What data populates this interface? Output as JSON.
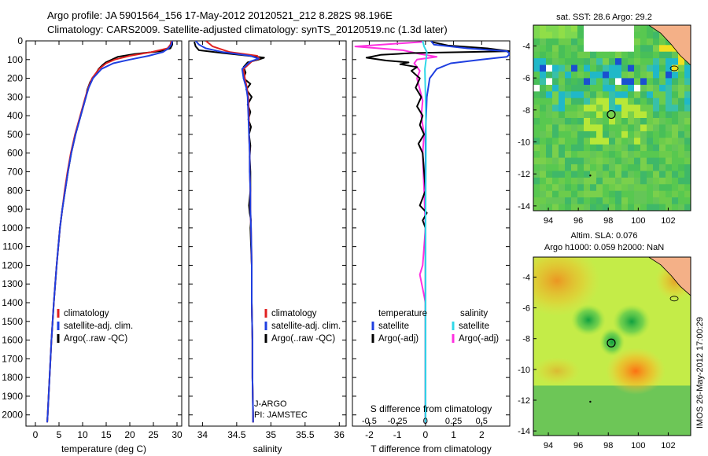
{
  "header": {
    "line1": "Argo profile: JA 5901564_156 17-May-2012 20120521_212 8.282S 98.196E",
    "line2": "Climatology: CARS2009. Satellite-adjusted climatology: synTS_20120519.nc (1.3d later)"
  },
  "colors": {
    "climatology": "#e02020",
    "satellite": "#1f3fe0",
    "argo": "#000000",
    "cyan": "#30d8e8",
    "magenta": "#ff30e0"
  },
  "chart_data": [
    {
      "id": "temperature",
      "type": "line",
      "xlabel": "temperature (deg C)",
      "ylabel": "",
      "xlim": [
        -2,
        31
      ],
      "ylim": [
        2060,
        0
      ],
      "xticks": [
        0,
        5,
        10,
        15,
        20,
        25,
        30
      ],
      "yticks": [
        0,
        100,
        200,
        300,
        400,
        500,
        600,
        700,
        800,
        900,
        1000,
        1100,
        1200,
        1300,
        1400,
        1500,
        1600,
        1700,
        1800,
        1900,
        2000
      ],
      "legend": {
        "position": "bottom-center",
        "entries": [
          "climatology",
          "satellite-adj. clim.",
          "Argo(..raw -QC)"
        ]
      },
      "series": [
        {
          "name": "climatology",
          "color": "#e02020",
          "depth": [
            0,
            20,
            40,
            60,
            80,
            100,
            120,
            150,
            200,
            250,
            300,
            400,
            500,
            600,
            700,
            800,
            900,
            1000,
            1200,
            1400,
            1600,
            1800,
            2000,
            2040
          ],
          "values": [
            28.8,
            28.6,
            28.0,
            24.5,
            20.0,
            16.8,
            15.0,
            13.5,
            12.0,
            11.2,
            10.6,
            9.5,
            8.4,
            7.5,
            6.8,
            6.2,
            5.7,
            5.2,
            4.5,
            3.9,
            3.4,
            3.0,
            2.6,
            2.5
          ]
        },
        {
          "name": "satellite-adj. clim.",
          "color": "#1f3fe0",
          "depth": [
            0,
            20,
            40,
            60,
            80,
            100,
            120,
            150,
            200,
            250,
            300,
            400,
            500,
            600,
            700,
            800,
            900,
            1000,
            1200,
            1400,
            1600,
            1800,
            2000,
            2040
          ],
          "values": [
            29.0,
            28.8,
            28.2,
            27.0,
            24.0,
            20.0,
            16.5,
            14.0,
            12.2,
            11.3,
            10.7,
            9.6,
            8.5,
            7.6,
            6.9,
            6.3,
            5.7,
            5.2,
            4.5,
            3.9,
            3.4,
            3.0,
            2.6,
            2.5
          ]
        },
        {
          "name": "Argo(..raw -QC)",
          "color": "#000000",
          "depth": [
            5,
            20,
            40,
            55,
            70,
            85,
            100,
            115,
            130,
            150,
            180,
            220,
            260,
            300,
            400,
            500,
            600,
            700,
            800,
            900,
            1000,
            1200,
            1400,
            1600,
            1800,
            2000,
            2040
          ],
          "values": [
            29.0,
            29.0,
            28.6,
            26.5,
            21.0,
            17.5,
            16.2,
            14.9,
            14.2,
            13.4,
            12.7,
            11.6,
            11.0,
            10.7,
            9.6,
            8.5,
            7.6,
            6.9,
            6.3,
            5.7,
            5.2,
            4.5,
            3.9,
            3.4,
            3.0,
            2.6,
            2.5
          ]
        }
      ]
    },
    {
      "id": "salinity",
      "type": "line",
      "xlabel": "salinity",
      "xlim": [
        33.8,
        36.1
      ],
      "ylim": [
        2060,
        0
      ],
      "xticks": [
        34,
        34.5,
        35,
        35.5,
        36
      ],
      "xticklabels": [
        "34",
        "34.5",
        "35",
        "35.5",
        "36"
      ],
      "legend": {
        "position": "bottom-center",
        "entries": [
          "climatology",
          "satellite-adj. clim.",
          "Argo(..raw -QC)"
        ]
      },
      "annotations": [
        "J-ARGO",
        "PI: JAMSTEC"
      ],
      "series": [
        {
          "name": "climatology",
          "color": "#e02020",
          "depth": [
            0,
            30,
            60,
            80,
            95,
            110,
            150,
            200,
            250,
            300,
            400,
            500,
            600,
            700,
            800,
            900,
            1000,
            1200,
            1400,
            1600,
            1800,
            2000,
            2040
          ],
          "values": [
            34.05,
            34.15,
            34.4,
            34.8,
            34.83,
            34.72,
            34.6,
            34.62,
            34.65,
            34.67,
            34.68,
            34.68,
            34.69,
            34.69,
            34.7,
            34.7,
            34.71,
            34.72,
            34.72,
            34.73,
            34.73,
            34.74,
            34.74
          ]
        },
        {
          "name": "satellite-adj. clim.",
          "color": "#1f3fe0",
          "depth": [
            0,
            20,
            40,
            60,
            80,
            95,
            110,
            150,
            200,
            250,
            300,
            400,
            500,
            600,
            700,
            800,
            900,
            1000,
            1200,
            1400,
            1600,
            1800,
            2000,
            2040
          ],
          "values": [
            33.9,
            33.95,
            34.05,
            34.3,
            34.7,
            34.82,
            34.7,
            34.58,
            34.6,
            34.64,
            34.66,
            34.67,
            34.68,
            34.69,
            34.69,
            34.7,
            34.7,
            34.71,
            34.72,
            34.72,
            34.73,
            34.73,
            34.74,
            34.74
          ]
        },
        {
          "name": "Argo(..raw -QC)",
          "color": "#000000",
          "depth": [
            5,
            30,
            50,
            65,
            80,
            90,
            100,
            115,
            140,
            170,
            200,
            230,
            260,
            300,
            340,
            380,
            420,
            460,
            500,
            560,
            620,
            700,
            800,
            880,
            920,
            960,
            1000,
            1100,
            1200,
            1400,
            1600,
            1800,
            2000,
            2040
          ],
          "values": [
            33.88,
            33.9,
            33.95,
            34.3,
            34.68,
            34.9,
            34.82,
            34.66,
            34.6,
            34.63,
            34.6,
            34.7,
            34.64,
            34.72,
            34.66,
            34.7,
            34.67,
            34.71,
            34.68,
            34.7,
            34.69,
            34.7,
            34.7,
            34.68,
            34.69,
            34.71,
            34.7,
            34.71,
            34.72,
            34.72,
            34.73,
            34.73,
            34.74,
            34.74
          ]
        }
      ]
    },
    {
      "id": "difference",
      "type": "line",
      "xlabel": "T difference from climatology",
      "xlabel_top": "S difference from climatology",
      "xlim": [
        -2.6,
        3.0
      ],
      "ylim": [
        2060,
        0
      ],
      "xticks": [
        -2,
        -1,
        0,
        1,
        2
      ],
      "xticklabels": [
        "-2",
        "-1",
        "0",
        "1",
        "2"
      ],
      "sticks": [
        "-0.5",
        "-0.25",
        "0",
        "0.25",
        "0.5"
      ],
      "legend": {
        "position": "bottom",
        "headers": [
          "temperature",
          "salinity"
        ],
        "entries": [
          "satellite",
          "Argo(-adj)",
          "satellite",
          "Argo(-adj)"
        ]
      },
      "series": [
        {
          "name": "T satellite",
          "color": "#1f3fe0",
          "depth": [
            0,
            20,
            40,
            55,
            70,
            85,
            100,
            120,
            150,
            200,
            300,
            500,
            1000,
            2000,
            2040
          ],
          "values": [
            0.2,
            0.3,
            1.5,
            2.9,
            3.0,
            2.9,
            2.0,
            0.9,
            0.4,
            0.15,
            0.05,
            0.0,
            0.0,
            0.0,
            0.0
          ]
        },
        {
          "name": "T Argo(-adj)",
          "color": "#000000",
          "depth": [
            5,
            25,
            40,
            55,
            65,
            75,
            90,
            105,
            115,
            125,
            140,
            160,
            200,
            250,
            300,
            350,
            400,
            450,
            500,
            550,
            600,
            700,
            800,
            880,
            920,
            960,
            1000,
            1100,
            1200,
            1400,
            1600,
            1800,
            2000,
            2040
          ],
          "values": [
            0.2,
            0.8,
            2.2,
            3.0,
            -0.5,
            -1.6,
            -2.1,
            -1.4,
            -0.6,
            -0.9,
            -0.3,
            -0.5,
            -0.2,
            -0.35,
            -0.15,
            -0.3,
            -0.1,
            -0.2,
            -0.05,
            -0.25,
            -0.1,
            -0.05,
            0.0,
            -0.2,
            0.05,
            -0.1,
            0.0,
            0.0,
            0.0,
            0.0,
            0.0,
            0.0,
            0.0,
            0.0
          ]
        },
        {
          "name": "S satellite",
          "color": "#30d8e8",
          "depth": [
            0,
            30,
            60,
            100,
            150,
            300,
            500,
            800,
            1000,
            1200,
            1400,
            2000,
            2040
          ],
          "values": [
            -0.1,
            -0.05,
            0.05,
            0.02,
            -0.02,
            0.0,
            0.02,
            0.01,
            0.0,
            0.0,
            0.0,
            0.0,
            0.0
          ]
        },
        {
          "name": "S Argo(-adj)",
          "color": "#ff30e0",
          "depth": [
            5,
            30,
            50,
            70,
            85,
            100,
            120,
            160,
            200,
            260,
            320,
            400,
            500,
            600,
            800,
            1000,
            1200,
            1250,
            1400,
            1600,
            2000,
            2040
          ],
          "values": [
            -0.1,
            -2.5,
            -0.8,
            -0.2,
            0.4,
            -0.3,
            -0.4,
            -0.2,
            -0.3,
            -0.2,
            -0.1,
            -0.15,
            -0.05,
            -0.1,
            -0.05,
            0.0,
            -0.1,
            -0.2,
            0.0,
            0.0,
            0.0,
            0.0
          ]
        }
      ]
    },
    {
      "id": "sst_map",
      "type": "heatmap",
      "title": "sat. SST: 28.6  Argo: 29.2",
      "xlim": [
        93,
        103.5
      ],
      "ylim": [
        -14.3,
        -2.7
      ],
      "xticks": [
        94,
        96,
        98,
        100,
        102
      ],
      "yticks": [
        -4,
        -6,
        -8,
        -10,
        -12,
        -14
      ],
      "argo_position": [
        98.196,
        -8.282
      ]
    },
    {
      "id": "sla_map",
      "type": "heatmap",
      "title": "Altim. SLA: 0.076",
      "subtitle": "Argo h1000: 0.059 h2000: NaN",
      "xlim": [
        93,
        103.5
      ],
      "ylim": [
        -14.3,
        -2.7
      ],
      "xticks": [
        94,
        96,
        98,
        100,
        102
      ],
      "yticks": [
        -4,
        -6,
        -8,
        -10,
        -12,
        -14
      ],
      "argo_position": [
        98.196,
        -8.282
      ]
    }
  ],
  "footer": {
    "stamp": "IMOS 26-May-2012 17:00:29"
  }
}
